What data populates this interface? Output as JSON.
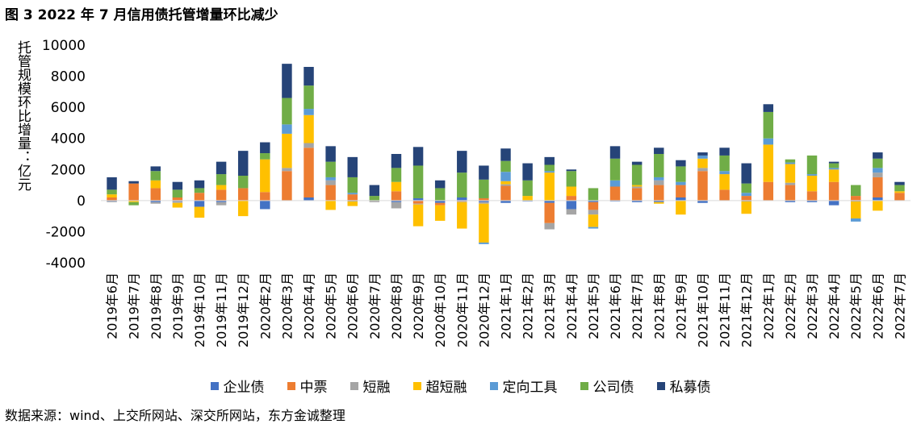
{
  "title": "图 3  2022 年 7 月信用债托管增量环比减少",
  "source": "数据来源：wind、上交所网站、深交所网站，东方金诚整理",
  "chart_data": {
    "type": "bar",
    "stacked": true,
    "ylabel": "托管规模环比增量：亿元",
    "ylim": [
      -4000,
      10000
    ],
    "yticks": [
      10000,
      8000,
      6000,
      4000,
      2000,
      0,
      -2000,
      -4000
    ],
    "legend_position": "bottom",
    "grid": false,
    "categories": [
      "2019年6月",
      "2019年7月",
      "2019年8月",
      "2019年9月",
      "2019年10月",
      "2019年11月",
      "2019年12月",
      "2020年2月",
      "2020年3月",
      "2020年4月",
      "2020年5月",
      "2020年6月",
      "2020年7月",
      "2020年8月",
      "2020年9月",
      "2020年10月",
      "2020年11月",
      "2020年12月",
      "2021年1月",
      "2021年2月",
      "2021年3月",
      "2021年4月",
      "2021年5月",
      "2021年6月",
      "2021年7月",
      "2021年8月",
      "2021年9月",
      "2021年10月",
      "2021年11月",
      "2021年12月",
      "2022年1月",
      "2022年2月",
      "2022年3月",
      "2022年4月",
      "2022年5月",
      "2022年6月",
      "2022年7月"
    ],
    "series": [
      {
        "name": "企业债",
        "color": "#4472C4",
        "values": [
          -50,
          0,
          -100,
          -50,
          -400,
          -100,
          0,
          -550,
          0,
          200,
          0,
          -50,
          0,
          -100,
          150,
          -150,
          200,
          -100,
          -150,
          -50,
          -150,
          -550,
          -100,
          -50,
          -100,
          -100,
          200,
          -150,
          0,
          -50,
          0,
          -100,
          -100,
          -300,
          -50,
          200,
          0
        ]
      },
      {
        "name": "中票",
        "color": "#ED7D31",
        "values": [
          200,
          1100,
          800,
          200,
          500,
          700,
          800,
          550,
          1900,
          3200,
          1000,
          400,
          0,
          600,
          -200,
          -150,
          -50,
          150,
          950,
          0,
          -1300,
          300,
          -500,
          900,
          800,
          1000,
          800,
          1900,
          700,
          300,
          1200,
          1000,
          600,
          1200,
          300,
          1300,
          500
        ]
      },
      {
        "name": "短融",
        "color": "#A5A5A5",
        "values": [
          -50,
          0,
          -100,
          -100,
          0,
          -200,
          0,
          0,
          200,
          300,
          300,
          0,
          -100,
          -400,
          -50,
          0,
          -50,
          -100,
          100,
          0,
          -400,
          -350,
          -300,
          0,
          100,
          300,
          0,
          200,
          0,
          0,
          0,
          150,
          0,
          0,
          0,
          300,
          0
        ]
      },
      {
        "name": "超短融",
        "color": "#FFC000",
        "values": [
          200,
          -100,
          500,
          -300,
          -700,
          300,
          -1000,
          2100,
          2200,
          1800,
          -600,
          -300,
          0,
          600,
          -1400,
          -1000,
          -1700,
          -2500,
          200,
          300,
          1800,
          600,
          -800,
          0,
          100,
          -100,
          -900,
          600,
          1000,
          -800,
          2400,
          1200,
          1000,
          800,
          -1100,
          -650,
          100
        ]
      },
      {
        "name": "定向工具",
        "color": "#5B9BD5",
        "values": [
          0,
          0,
          0,
          0,
          0,
          0,
          0,
          0,
          600,
          400,
          200,
          100,
          0,
          0,
          0,
          0,
          0,
          -100,
          600,
          0,
          100,
          0,
          -100,
          400,
          0,
          200,
          200,
          200,
          200,
          200,
          400,
          100,
          100,
          100,
          -200,
          300,
          0
        ]
      },
      {
        "name": "公司债",
        "color": "#70AD47",
        "values": [
          300,
          -200,
          600,
          500,
          300,
          700,
          800,
          400,
          1700,
          1500,
          1000,
          1000,
          300,
          900,
          2100,
          800,
          1600,
          1200,
          700,
          1000,
          400,
          1000,
          800,
          1400,
          1300,
          1500,
          1000,
          0,
          1000,
          600,
          1700,
          200,
          1200,
          300,
          700,
          600,
          400
        ]
      },
      {
        "name": "私募债",
        "color": "#264478",
        "values": [
          800,
          150,
          300,
          500,
          500,
          800,
          1600,
          700,
          2200,
          1200,
          1000,
          1300,
          700,
          900,
          1200,
          500,
          1400,
          900,
          800,
          1100,
          500,
          100,
          0,
          800,
          200,
          400,
          400,
          200,
          500,
          1300,
          500,
          0,
          0,
          100,
          0,
          400,
          200
        ]
      }
    ]
  }
}
